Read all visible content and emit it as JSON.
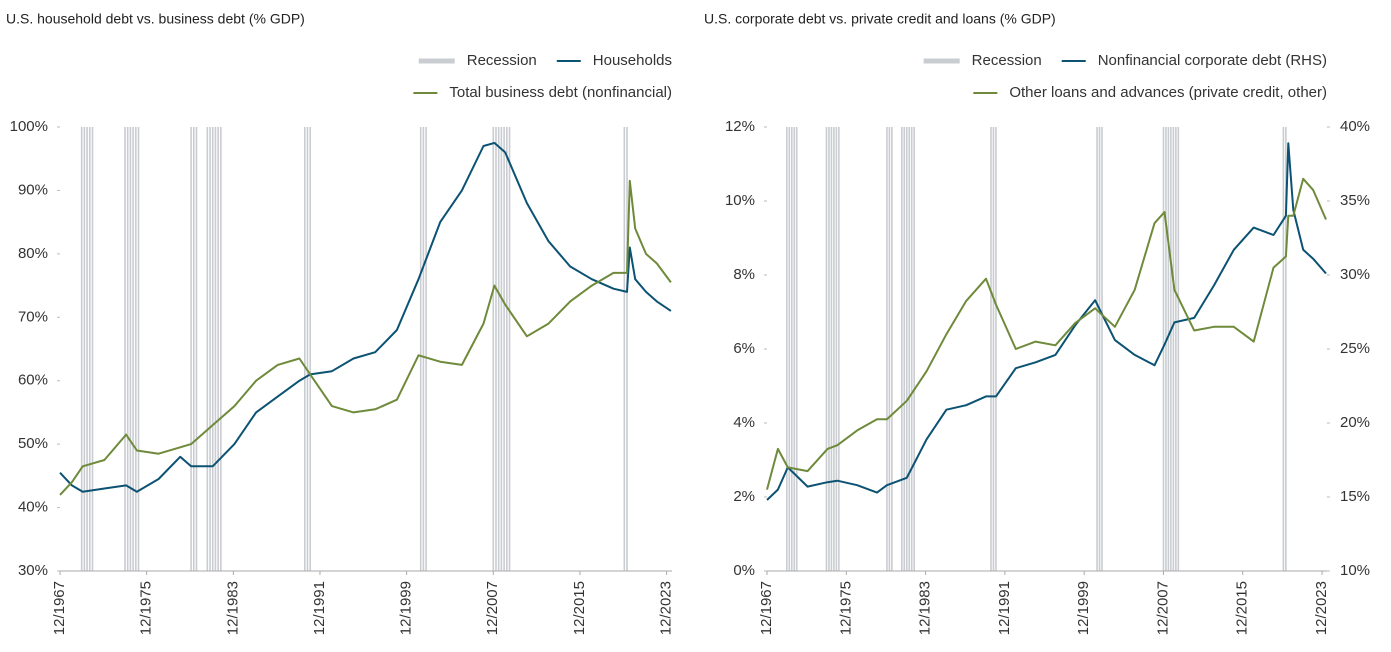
{
  "chart_data": [
    {
      "type": "line",
      "title": "U.S. household debt vs. business debt (% GDP)",
      "recession_label": "Recession",
      "recession_color": "#c9ccd1",
      "recessions": [
        [
          1969.9,
          1970.9
        ],
        [
          1973.9,
          1975.2
        ],
        [
          1980.0,
          1980.5
        ],
        [
          1981.5,
          1982.9
        ],
        [
          1990.5,
          1991.2
        ],
        [
          2001.2,
          2001.9
        ],
        [
          2007.9,
          2009.5
        ],
        [
          2020.0,
          2020.4
        ]
      ],
      "x": [
        1967.9,
        1969,
        1970,
        1972,
        1974,
        1975,
        1977,
        1979,
        1980,
        1982,
        1984,
        1986,
        1988,
        1990,
        1991,
        1993,
        1995,
        1997,
        1999,
        2001,
        2003,
        2005,
        2007,
        2008,
        2009,
        2011,
        2013,
        2015,
        2017,
        2019,
        2020.25,
        2020.5,
        2021,
        2022,
        2023,
        2024.3
      ],
      "series": [
        {
          "name": "Households",
          "color": "#0b5273",
          "values": [
            45.5,
            43.5,
            42.5,
            43,
            43.5,
            42.5,
            44.5,
            48,
            46.5,
            46.5,
            50,
            55,
            57.5,
            60,
            61,
            61.5,
            63.5,
            64.5,
            68,
            76,
            85,
            90,
            97,
            97.5,
            96,
            88,
            82,
            78,
            76,
            74.5,
            74,
            81,
            76,
            74,
            72.5,
            71
          ]
        },
        {
          "name": "Total business debt (nonfinancial)",
          "color": "#6e8a3a",
          "values": [
            42,
            44,
            46.5,
            47.5,
            51.5,
            49,
            48.5,
            49.5,
            50,
            53,
            56,
            60,
            62.5,
            63.5,
            61,
            56,
            55,
            55.5,
            57,
            64,
            63,
            62.5,
            69,
            75,
            72,
            67,
            69,
            72.5,
            75,
            77,
            77,
            91.5,
            84,
            80,
            78.5,
            75.5
          ]
        }
      ],
      "xlim": [
        1967.9,
        2024.4
      ],
      "xticks": [
        {
          "value": 1967.9,
          "label": "12/1967"
        },
        {
          "value": 1975.9,
          "label": "12/1975"
        },
        {
          "value": 1983.9,
          "label": "12/1983"
        },
        {
          "value": 1991.9,
          "label": "12/1991"
        },
        {
          "value": 1999.9,
          "label": "12/1999"
        },
        {
          "value": 2007.9,
          "label": "12/2007"
        },
        {
          "value": 2015.9,
          "label": "12/2015"
        },
        {
          "value": 2023.9,
          "label": "12/2023"
        }
      ],
      "ylim": [
        30,
        100
      ],
      "yticks": [
        {
          "value": 30,
          "label": "30%"
        },
        {
          "value": 40,
          "label": "40%"
        },
        {
          "value": 50,
          "label": "50%"
        },
        {
          "value": 60,
          "label": "60%"
        },
        {
          "value": 70,
          "label": "70%"
        },
        {
          "value": 80,
          "label": "80%"
        },
        {
          "value": 90,
          "label": "90%"
        },
        {
          "value": 100,
          "label": "100%"
        }
      ]
    },
    {
      "type": "line",
      "title": "U.S. corporate debt vs. private credit and loans (% GDP)",
      "recession_label": "Recession",
      "recession_color": "#c9ccd1",
      "recessions": [
        [
          1969.9,
          1970.9
        ],
        [
          1973.9,
          1975.2
        ],
        [
          1980.0,
          1980.5
        ],
        [
          1981.5,
          1982.9
        ],
        [
          1990.5,
          1991.2
        ],
        [
          2001.2,
          2001.9
        ],
        [
          2007.9,
          2009.5
        ],
        [
          2020.0,
          2020.4
        ]
      ],
      "x": [
        1967.9,
        1969,
        1970,
        1972,
        1974,
        1975,
        1977,
        1979,
        1980,
        1982,
        1984,
        1986,
        1988,
        1990,
        1991,
        1993,
        1995,
        1997,
        1999,
        2001,
        2003,
        2005,
        2007,
        2008,
        2009,
        2011,
        2013,
        2015,
        2017,
        2019,
        2020.25,
        2020.5,
        2021,
        2022,
        2023,
        2024.3
      ],
      "series": [
        {
          "name": "Nonfinancial corporate debt (RHS)",
          "color": "#0b5273",
          "axis": "y2",
          "values": [
            14.8,
            15.5,
            17,
            15.7,
            16,
            16.1,
            15.8,
            15.3,
            15.8,
            16.3,
            18.9,
            20.9,
            21.2,
            21.8,
            21.8,
            23.7,
            24.1,
            24.6,
            26.6,
            28.3,
            25.6,
            24.6,
            23.9,
            25.3,
            26.8,
            27.1,
            29.3,
            31.7,
            33.2,
            32.7,
            34,
            38.9,
            34.4,
            31.7,
            31.1,
            30.1
          ]
        },
        {
          "name": "Other loans and advances (private credit, other)",
          "color": "#6e8a3a",
          "values": [
            2.2,
            3.3,
            2.8,
            2.7,
            3.3,
            3.4,
            3.8,
            4.1,
            4.1,
            4.6,
            5.4,
            6.4,
            7.3,
            7.9,
            7.2,
            6.0,
            6.2,
            6.1,
            6.7,
            7.1,
            6.6,
            7.6,
            9.4,
            9.7,
            7.6,
            6.5,
            6.6,
            6.6,
            6.2,
            8.2,
            8.5,
            9.6,
            9.6,
            10.6,
            10.3,
            9.5
          ]
        }
      ],
      "xlim": [
        1967.9,
        2024.4
      ],
      "xticks": [
        {
          "value": 1967.9,
          "label": "12/1967"
        },
        {
          "value": 1975.9,
          "label": "12/1975"
        },
        {
          "value": 1983.9,
          "label": "12/1983"
        },
        {
          "value": 1991.9,
          "label": "12/1991"
        },
        {
          "value": 1999.9,
          "label": "12/1999"
        },
        {
          "value": 2007.9,
          "label": "12/2007"
        },
        {
          "value": 2015.9,
          "label": "12/2015"
        },
        {
          "value": 2023.9,
          "label": "12/2023"
        }
      ],
      "ylim": [
        0,
        12
      ],
      "yticks": [
        {
          "value": 0,
          "label": "0%"
        },
        {
          "value": 2,
          "label": "2%"
        },
        {
          "value": 4,
          "label": "4%"
        },
        {
          "value": 6,
          "label": "6%"
        },
        {
          "value": 8,
          "label": "8%"
        },
        {
          "value": 10,
          "label": "10%"
        },
        {
          "value": 12,
          "label": "12%"
        }
      ],
      "y2lim": [
        10,
        40
      ],
      "y2ticks": [
        {
          "value": 10,
          "label": "10%"
        },
        {
          "value": 15,
          "label": "15%"
        },
        {
          "value": 20,
          "label": "20%"
        },
        {
          "value": 25,
          "label": "25%"
        },
        {
          "value": 30,
          "label": "30%"
        },
        {
          "value": 35,
          "label": "35%"
        },
        {
          "value": 40,
          "label": "40%"
        }
      ]
    }
  ]
}
